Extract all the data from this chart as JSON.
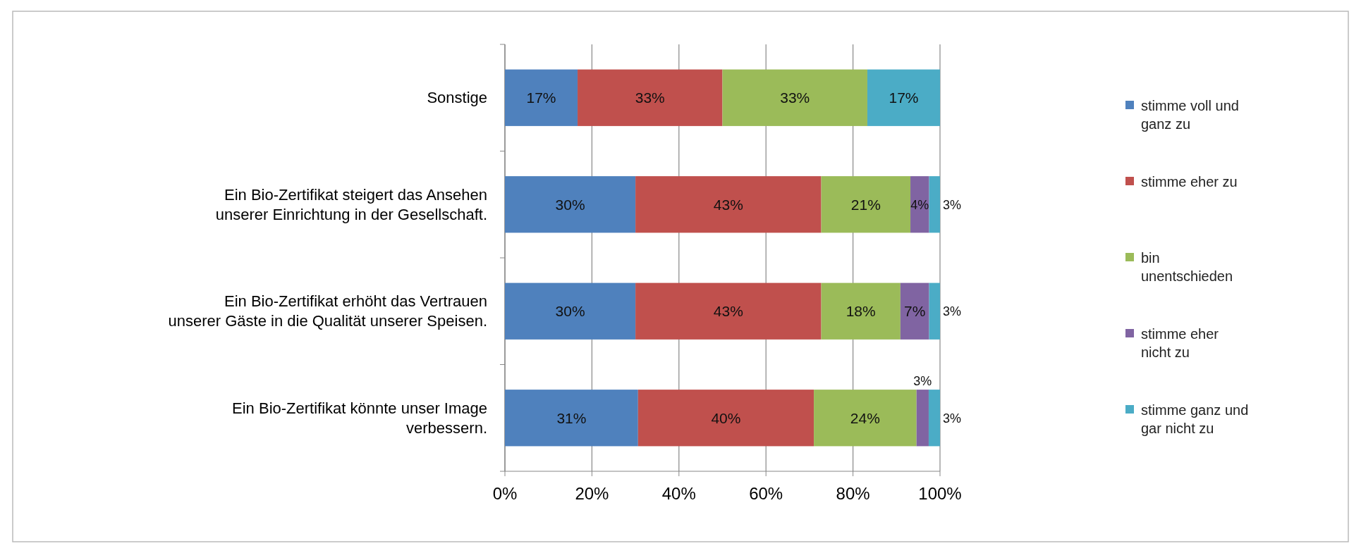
{
  "chart_data": {
    "type": "bar",
    "orientation": "horizontal",
    "stacked": true,
    "grid": "x",
    "legend": "right",
    "categories": [
      "Sonstige",
      "Ein Bio-Zertifikat steigert das Ansehen unserer Einrichtung in der Gesellschaft.",
      "Ein Bio-Zertifikat erhöht das Vertrauen unserer Gäste in die Qualität unserer Speisen.",
      "Ein Bio-Zertifikat könnte unser Image verbessern."
    ],
    "xlim": [
      0,
      100
    ],
    "xticks": [
      {
        "value": 0,
        "label": "0%"
      },
      {
        "value": 20,
        "label": "20%"
      },
      {
        "value": 40,
        "label": "40%"
      },
      {
        "value": 60,
        "label": "60%"
      },
      {
        "value": 80,
        "label": "80%"
      },
      {
        "value": 100,
        "label": "100%"
      }
    ],
    "series": [
      {
        "name": "stimme voll und ganz zu",
        "color": "#4f81bd",
        "values": [
          16.7,
          30,
          30,
          30.6
        ],
        "value_labels": [
          "17%",
          "30%",
          "30%",
          "31%"
        ]
      },
      {
        "name": "stimme eher zu",
        "color": "#c0504d",
        "values": [
          33.3,
          42.7,
          42.7,
          40.4
        ],
        "value_labels": [
          "33%",
          "43%",
          "43%",
          "40%"
        ]
      },
      {
        "name": "bin unentschieden",
        "color": "#9bbb59",
        "values": [
          33.3,
          20.5,
          18.2,
          23.6
        ],
        "value_labels": [
          "33%",
          "21%",
          "18%",
          "24%"
        ]
      },
      {
        "name": "stimme eher nicht zu",
        "color": "#8064a2",
        "values": [
          null,
          4.3,
          6.6,
          2.8
        ],
        "value_labels": [
          null,
          "4%",
          "7%",
          "3%"
        ]
      },
      {
        "name": "stimme ganz und gar nicht zu",
        "color": "#4bacc6",
        "values": [
          16.7,
          2.5,
          2.5,
          2.6
        ],
        "value_labels": [
          "17%",
          "3%",
          "3%",
          "3%"
        ]
      }
    ]
  }
}
